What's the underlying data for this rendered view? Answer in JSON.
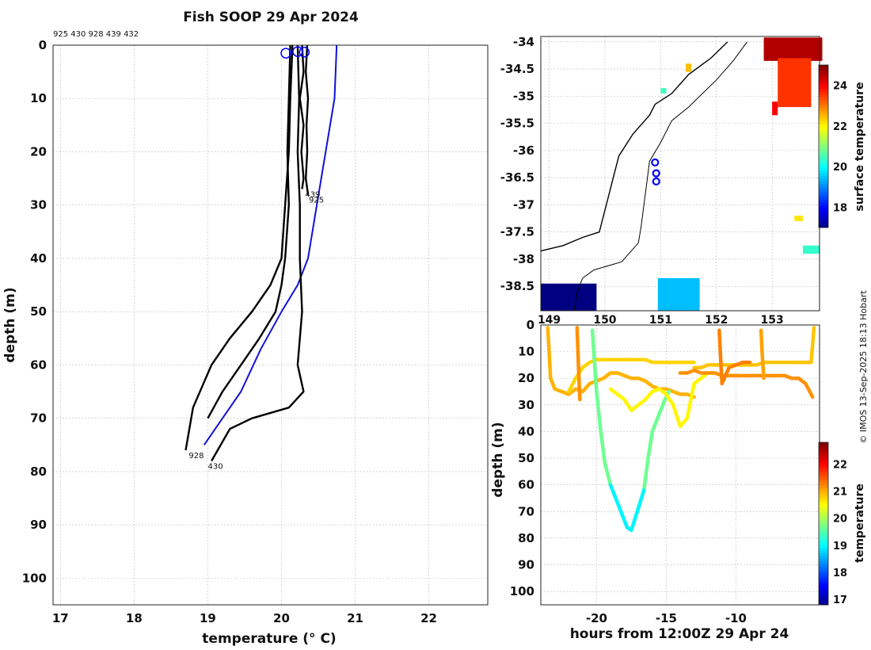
{
  "title": "Fish SOOP 29 Apr 2024",
  "cast_ids_label": "925 430 928 439 432",
  "credit": "© IMOS 13-Sep-2025 18:13 Hobart",
  "colors": {
    "profile": "#000000",
    "climatology": "#1010d8",
    "marker": "#0000ff",
    "grid": "#bdbdbd",
    "coast": "#000000"
  },
  "chart_data": [
    {
      "type": "line",
      "title": "Fish SOOP 29 Apr 2024",
      "xlabel": "temperature (° C)",
      "ylabel": "depth (m)",
      "xlim": [
        16.9,
        22.8
      ],
      "ylim": [
        0,
        105
      ],
      "xticks": [
        17,
        18,
        19,
        20,
        21,
        22
      ],
      "yticks": [
        0,
        10,
        20,
        30,
        40,
        50,
        60,
        70,
        80,
        90,
        100
      ],
      "reversed_y": true,
      "cast_labels": [
        {
          "text": "928",
          "x": 18.72,
          "y": 76
        },
        {
          "text": "430",
          "x": 18.98,
          "y": 78
        },
        {
          "text": "925",
          "x": 20.35,
          "y": 28
        },
        {
          "text": "439",
          "x": 20.3,
          "y": 27
        }
      ],
      "series": [
        {
          "name": "climatology",
          "x": [
            20.75,
            20.72,
            20.6,
            20.48,
            20.36,
            20.22,
            20.0,
            19.72,
            19.45,
            19.2,
            18.95
          ],
          "y": [
            0,
            10,
            20,
            30,
            40,
            45,
            50,
            57,
            65,
            70,
            75
          ]
        },
        {
          "name": "925",
          "x": [
            20.35,
            20.33,
            20.36,
            20.34,
            20.35,
            20.33,
            20.36,
            20.35
          ],
          "y": [
            0,
            5,
            10,
            15,
            20,
            25,
            28,
            28
          ]
        },
        {
          "name": "439",
          "x": [
            20.28,
            20.3,
            20.25,
            20.3,
            20.27,
            20.3,
            20.28
          ],
          "y": [
            0,
            5,
            10,
            15,
            20,
            25,
            27
          ]
        },
        {
          "name": "432",
          "x": [
            20.12,
            20.1,
            20.08,
            20.1,
            20.05,
            20.0,
            19.92,
            19.7,
            19.45,
            19.2,
            19.0
          ],
          "y": [
            0,
            10,
            20,
            30,
            40,
            45,
            50,
            55,
            60,
            65,
            70
          ]
        },
        {
          "name": "928",
          "x": [
            20.15,
            20.12,
            20.1,
            20.05,
            20.0,
            19.85,
            19.6,
            19.3,
            19.05,
            18.8,
            18.7
          ],
          "y": [
            0,
            10,
            20,
            30,
            40,
            45,
            50,
            55,
            60,
            68,
            76
          ]
        },
        {
          "name": "430",
          "x": [
            20.22,
            20.24,
            20.22,
            20.25,
            20.25,
            20.28,
            20.22,
            20.3,
            20.1,
            19.6,
            19.3,
            19.05
          ],
          "y": [
            0,
            10,
            20,
            30,
            40,
            50,
            60,
            65,
            68,
            70,
            72,
            78
          ]
        }
      ],
      "surface_markers": [
        {
          "x": 20.06,
          "y": 1.5
        },
        {
          "x": 20.22,
          "y": 1.2
        },
        {
          "x": 20.31,
          "y": 1.3
        }
      ]
    },
    {
      "type": "heatmap",
      "title": "",
      "xlabel": "",
      "ylabel": "",
      "xlim": [
        148.85,
        153.85
      ],
      "ylim": [
        -38.95,
        -33.9
      ],
      "xticks": [
        149,
        150,
        151,
        152,
        153
      ],
      "xtick_labels": [
        "149",
        "150",
        "151",
        "152",
        "153"
      ],
      "yticks": [
        -34,
        -34.5,
        -35,
        -35.5,
        -36,
        -36.5,
        -37,
        -37.5,
        -38,
        -38.5
      ],
      "yticks_labels": [
        "-34",
        "-34.5",
        "-35",
        "-35.5",
        "-36",
        "-36.5",
        "-37",
        "-37.5",
        "-38",
        "-38.5"
      ],
      "colorbar": {
        "label": "surface temperature",
        "range": [
          17,
          25
        ],
        "ticks": [
          18,
          20,
          22,
          24
        ]
      },
      "cast_positions": [
        {
          "lon": 150.9,
          "lat": -36.22
        },
        {
          "lon": 150.92,
          "lat": -36.42
        },
        {
          "lon": 150.92,
          "lat": -36.57
        }
      ],
      "coastline": [
        [
          152.2,
          -34.0
        ],
        [
          151.9,
          -34.3
        ],
        [
          151.5,
          -34.6
        ],
        [
          151.2,
          -34.95
        ],
        [
          150.9,
          -35.15
        ],
        [
          150.8,
          -35.35
        ],
        [
          150.5,
          -35.7
        ],
        [
          150.25,
          -36.1
        ],
        [
          150.15,
          -36.5
        ],
        [
          150.05,
          -36.9
        ],
        [
          149.95,
          -37.3
        ],
        [
          149.9,
          -37.5
        ],
        [
          149.6,
          -37.6
        ],
        [
          149.25,
          -37.75
        ],
        [
          148.85,
          -37.85
        ]
      ],
      "shelf_contour": [
        [
          152.55,
          -34.0
        ],
        [
          152.3,
          -34.35
        ],
        [
          152.0,
          -34.7
        ],
        [
          151.5,
          -35.2
        ],
        [
          151.2,
          -35.45
        ],
        [
          151.0,
          -35.85
        ],
        [
          150.8,
          -36.2
        ],
        [
          150.75,
          -36.6
        ],
        [
          150.7,
          -37.0
        ],
        [
          150.65,
          -37.4
        ],
        [
          150.6,
          -37.7
        ],
        [
          150.3,
          -38.05
        ],
        [
          149.8,
          -38.2
        ],
        [
          149.6,
          -38.35
        ],
        [
          149.5,
          -38.6
        ],
        [
          149.45,
          -38.95
        ]
      ],
      "sst_blobs": [
        {
          "lon": [
            152.85,
            153.9
          ],
          "lat": [
            -33.92,
            -34.35
          ],
          "temp": 24.6
        },
        {
          "lon": [
            153.1,
            153.7
          ],
          "lat": [
            -34.3,
            -35.2
          ],
          "temp": 23.6
        },
        {
          "lon": [
            153.0,
            153.1
          ],
          "lat": [
            -35.1,
            -35.35
          ],
          "temp": 24.0
        },
        {
          "lon": [
            150.95,
            151.7
          ],
          "lat": [
            -38.35,
            -38.95
          ],
          "temp": 19.5
        },
        {
          "lon": [
            148.85,
            149.85
          ],
          "lat": [
            -38.45,
            -38.95
          ],
          "temp": 17.0
        },
        {
          "lon": [
            153.55,
            153.85
          ],
          "lat": [
            -37.75,
            -37.9
          ],
          "temp": 20.4
        },
        {
          "lon": [
            153.4,
            153.55
          ],
          "lat": [
            -37.2,
            -37.3
          ],
          "temp": 22.2
        },
        {
          "lon": [
            151.45,
            151.55
          ],
          "lat": [
            -34.4,
            -34.55
          ],
          "temp": 22.5
        },
        {
          "lon": [
            151.0,
            151.1
          ],
          "lat": [
            -34.85,
            -34.95
          ],
          "temp": 20.5
        }
      ]
    },
    {
      "type": "scatter",
      "title": "",
      "xlabel": "hours from 12:00Z 29 Apr 24",
      "ylabel": "depth (m)",
      "xlim": [
        -24.0,
        -4.0
      ],
      "ylim": [
        0,
        105
      ],
      "xticks": [
        -20,
        -15,
        -10
      ],
      "yticks": [
        0,
        10,
        20,
        30,
        40,
        50,
        60,
        70,
        80,
        90,
        100
      ],
      "reversed_y": true,
      "colorbar": {
        "label": "temperature",
        "range": [
          16.8,
          22.8
        ],
        "ticks": [
          17,
          18,
          19,
          20,
          21,
          22
        ]
      },
      "tracks": [
        {
          "t": [
            -23.5,
            -23.3,
            -23.0,
            -22.5,
            -22.0,
            -21.5,
            -21.0,
            -20.5,
            -20.0,
            -19.5,
            -19.0,
            -18.5,
            -18.0,
            -17.5,
            -17.0,
            -16.5,
            -16.0,
            -15.5,
            -15.0,
            -14.5,
            -14.0,
            -13.5,
            -13.0
          ],
          "d": [
            1,
            20,
            24,
            25,
            26,
            24,
            25,
            22,
            21,
            20,
            18,
            18,
            19,
            20,
            20,
            21,
            23,
            24,
            24,
            25,
            26,
            26,
            27
          ],
          "temp": 21.0
        },
        {
          "t": [
            -22.0,
            -21.5,
            -21.0,
            -20.5,
            -20.0,
            -19.5,
            -19.0,
            -18.5,
            -18.0,
            -17.5,
            -17.0,
            -16.5,
            -16.0,
            -15.5,
            -15.0,
            -14.5,
            -14.0,
            -13.5,
            -13.0
          ],
          "d": [
            25,
            20,
            16,
            14,
            13,
            13,
            13,
            13,
            13,
            13,
            13,
            13,
            14,
            14,
            14,
            14,
            14,
            14,
            14
          ],
          "temp": 20.8
        },
        {
          "t": [
            -20.3,
            -20.0,
            -19.7,
            -19.4,
            -19.0,
            -18.7,
            -18.4,
            -18.1,
            -17.8,
            -17.5,
            -17.2,
            -16.9,
            -16.6,
            -16.3,
            -16.0,
            -15.7,
            -15.4,
            -15.1,
            -14.8
          ],
          "d": [
            2,
            25,
            40,
            52,
            60,
            64,
            68,
            72,
            76,
            77,
            72,
            67,
            62,
            50,
            40,
            36,
            32,
            28,
            25
          ],
          "temp": 19.7
        },
        {
          "t": [
            -19.0,
            -18.5,
            -18.0,
            -17.5,
            -17.0,
            -16.5,
            -16.0,
            -15.5,
            -15.0,
            -14.5,
            -14.0,
            -13.5,
            -13.0,
            -12.5,
            -12.0
          ],
          "d": [
            24,
            26,
            28,
            32,
            30,
            28,
            25,
            24,
            26,
            30,
            38,
            35,
            22,
            20,
            18
          ],
          "temp": 20.6
        },
        {
          "t": [
            -13.0,
            -12.5,
            -12.0,
            -11.5,
            -11.0,
            -10.5,
            -10.0,
            -9.5,
            -9.0,
            -8.5,
            -8.0,
            -7.5,
            -7.0,
            -6.5,
            -6.0,
            -5.5,
            -5.0,
            -4.6,
            -4.4
          ],
          "d": [
            16,
            16,
            15,
            15,
            15,
            15,
            15,
            15,
            15,
            15,
            14,
            14,
            14,
            14,
            14,
            14,
            14,
            14,
            1
          ],
          "temp": 20.9
        },
        {
          "t": [
            -14.0,
            -13.5,
            -13.0,
            -12.5,
            -12.0,
            -11.5,
            -11.0,
            -10.5,
            -10.0,
            -9.5,
            -9.0,
            -8.5,
            -8.0,
            -7.5,
            -7.0,
            -6.5,
            -6.0,
            -5.5,
            -5.0,
            -4.5
          ],
          "d": [
            18,
            18,
            17,
            18,
            18,
            18,
            19,
            19,
            19,
            19,
            19,
            19,
            19,
            19,
            19,
            19,
            20,
            20,
            22,
            27
          ],
          "temp": 21.2
        },
        {
          "t": [
            -11.2,
            -11.1,
            -11.0,
            -10.5,
            -10.0,
            -9.5,
            -9.0
          ],
          "d": [
            2,
            12,
            22,
            16,
            15,
            14,
            14
          ],
          "temp": 21.3
        },
        {
          "t": [
            -21.4,
            -21.3,
            -21.2
          ],
          "d": [
            1,
            15,
            28
          ],
          "temp": 21.2
        },
        {
          "t": [
            -8.2,
            -8.1,
            -8.0
          ],
          "d": [
            2,
            12,
            20
          ],
          "temp": 21.1
        }
      ]
    }
  ]
}
